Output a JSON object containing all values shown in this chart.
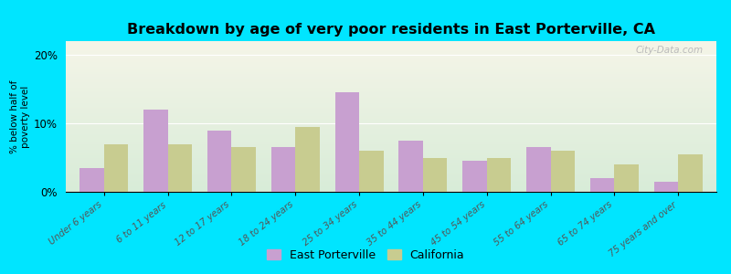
{
  "title": "Breakdown by age of very poor residents in East Porterville, CA",
  "categories": [
    "Under 6 years",
    "6 to 11 years",
    "12 to 17 years",
    "18 to 24 years",
    "25 to 34 years",
    "35 to 44 years",
    "45 to 54 years",
    "55 to 64 years",
    "65 to 74 years",
    "75 years and over"
  ],
  "east_porterville": [
    3.5,
    12.0,
    9.0,
    6.5,
    14.5,
    7.5,
    4.5,
    6.5,
    2.0,
    1.5
  ],
  "california": [
    7.0,
    7.0,
    6.5,
    9.5,
    6.0,
    5.0,
    5.0,
    6.0,
    4.0,
    5.5
  ],
  "ep_color": "#c8a0d0",
  "ca_color": "#c8cc90",
  "ylabel": "% below half of\npoverty level",
  "ylim": [
    0,
    22
  ],
  "yticks": [
    0,
    10,
    20
  ],
  "ytick_labels": [
    "0%",
    "10%",
    "20%"
  ],
  "background_outer": "#00e5ff",
  "background_plot_top": "#f5f5e8",
  "background_plot_bottom": "#d8ecd8",
  "legend_ep": "East Porterville",
  "legend_ca": "California",
  "watermark": "City-Data.com"
}
